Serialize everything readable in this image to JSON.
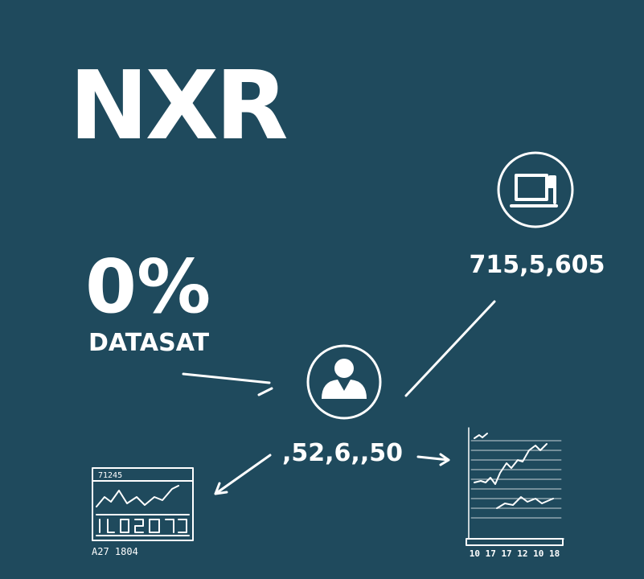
{
  "logo": "NXR",
  "stat": {
    "value": "0%",
    "label": "DATASAT"
  },
  "nodes": [
    {
      "label": "715,5,605"
    },
    {
      "label": ",52,6,,50"
    }
  ],
  "mini_charts": [
    {
      "title": "71245",
      "footer": "A27 1804"
    },
    {
      "footer": "10 17 17 12 10 18"
    }
  ]
}
